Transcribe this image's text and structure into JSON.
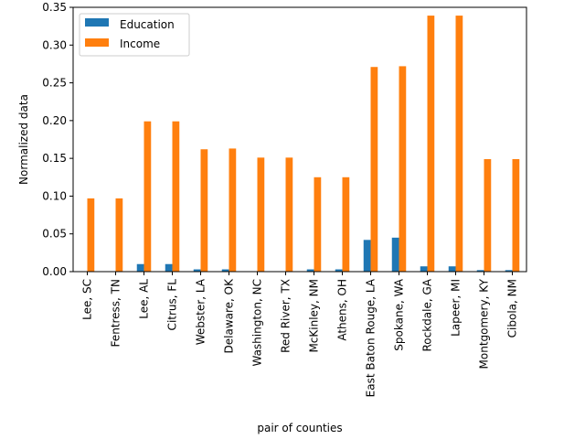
{
  "chart_data": {
    "type": "bar",
    "title": "",
    "xlabel": "pair of counties",
    "ylabel": "Normalized data",
    "categories": [
      "Lee, SC",
      "Fentress, TN",
      "Lee, AL",
      "Citrus, FL",
      "Webster, LA",
      "Delaware, OK",
      "Washington, NC",
      "Red River, TX",
      "McKinley, NM",
      "Athens, OH",
      "East Baton Rouge, LA",
      "Spokane, WA",
      "Rockdale, GA",
      "Lapeer, MI",
      "Montgomery, KY",
      "Cibola, NM"
    ],
    "series": [
      {
        "name": "Education",
        "color": "#1f77b4",
        "values": [
          0.0,
          0.0,
          0.01,
          0.01,
          0.003,
          0.003,
          0.0,
          0.0,
          0.003,
          0.003,
          0.042,
          0.045,
          0.007,
          0.007,
          0.002,
          0.002
        ]
      },
      {
        "name": "Income",
        "color": "#ff7f0e",
        "values": [
          0.097,
          0.097,
          0.199,
          0.199,
          0.162,
          0.163,
          0.151,
          0.151,
          0.125,
          0.125,
          0.271,
          0.272,
          0.339,
          0.339,
          0.149,
          0.149
        ]
      }
    ],
    "ylim": [
      0,
      0.35
    ],
    "yticks": [
      "0.00",
      "0.05",
      "0.10",
      "0.15",
      "0.20",
      "0.25",
      "0.30",
      "0.35"
    ],
    "grid": false,
    "legend_position": "upper left"
  }
}
